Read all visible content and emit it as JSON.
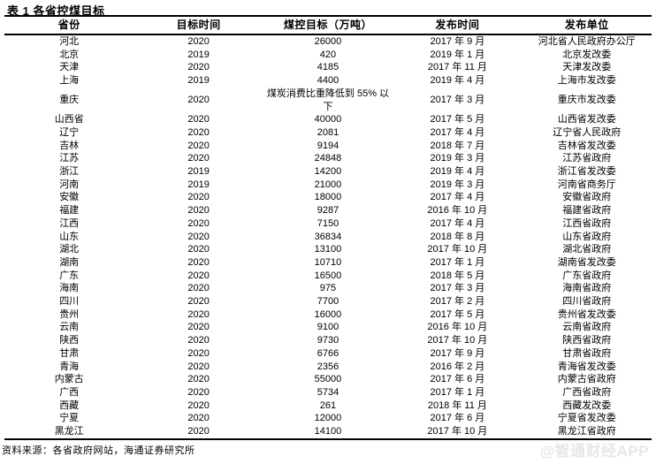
{
  "title": "表 1 各省控煤目标",
  "table": {
    "headers": [
      "省份",
      "目标时间",
      "煤控目标（万吨）",
      "发布时间",
      "发布单位"
    ],
    "rows": [
      [
        "河北",
        "2020",
        "26000",
        "2017 年 9 月",
        "河北省人民政府办公厅"
      ],
      [
        "北京",
        "2019",
        "420",
        "2019 年 1 月",
        "北京发改委"
      ],
      [
        "天津",
        "2020",
        "4185",
        "2017 年 11 月",
        "天津发改委"
      ],
      [
        "上海",
        "2019",
        "4400",
        "2019 年 4 月",
        "上海市发改委"
      ],
      [
        "重庆",
        "2020",
        "煤炭消费比重降低到 55% 以下",
        "2017 年 3 月",
        "重庆市发改委"
      ],
      [
        "山西省",
        "2020",
        "40000",
        "2017 年 5 月",
        "山西省发改委"
      ],
      [
        "辽宁",
        "2020",
        "2081",
        "2017 年 4 月",
        "辽宁省人民政府"
      ],
      [
        "吉林",
        "2020",
        "9194",
        "2018 年 7 月",
        "吉林省发改委"
      ],
      [
        "江苏",
        "2020",
        "24848",
        "2019 年 3 月",
        "江苏省政府"
      ],
      [
        "浙江",
        "2019",
        "14200",
        "2019 年 4 月",
        "浙江省发改委"
      ],
      [
        "河南",
        "2019",
        "21000",
        "2019 年 3 月",
        "河南省商务厅"
      ],
      [
        "安徽",
        "2020",
        "18000",
        "2017 年 4 月",
        "安徽省政府"
      ],
      [
        "福建",
        "2020",
        "9287",
        "2016 年 10 月",
        "福建省政府"
      ],
      [
        "江西",
        "2020",
        "7150",
        "2017 年 4 月",
        "江西省政府"
      ],
      [
        "山东",
        "2020",
        "36834",
        "2018 年 8 月",
        "山东省政府"
      ],
      [
        "湖北",
        "2020",
        "13100",
        "2017 年 10 月",
        "湖北省政府"
      ],
      [
        "湖南",
        "2020",
        "10710",
        "2017 年 1 月",
        "湖南省发改委"
      ],
      [
        "广东",
        "2020",
        "16500",
        "2018 年 5 月",
        "广东省政府"
      ],
      [
        "海南",
        "2020",
        "975",
        "2017 年 3 月",
        "海南省政府"
      ],
      [
        "四川",
        "2020",
        "7700",
        "2017 年 2 月",
        "四川省政府"
      ],
      [
        "贵州",
        "2020",
        "16000",
        "2017 年 5 月",
        "贵州省发改委"
      ],
      [
        "云南",
        "2020",
        "9100",
        "2016 年 10 月",
        "云南省政府"
      ],
      [
        "陕西",
        "2020",
        "9730",
        "2017 年 10 月",
        "陕西省政府"
      ],
      [
        "甘肃",
        "2020",
        "6766",
        "2017 年 9 月",
        "甘肃省政府"
      ],
      [
        "青海",
        "2020",
        "2356",
        "2016 年 2 月",
        "青海省发改委"
      ],
      [
        "内蒙古",
        "2020",
        "55000",
        "2017 年 6 月",
        "内蒙古省政府"
      ],
      [
        "广西",
        "2020",
        "5734",
        "2017 年 1 月",
        "广西省政府"
      ],
      [
        "西藏",
        "2020",
        "261",
        "2018 年 11 月",
        "西藏发改委"
      ],
      [
        "宁夏",
        "2020",
        "12000",
        "2017 年 6 月",
        "宁夏省发改委"
      ],
      [
        "黑龙江",
        "2020",
        "14100",
        "2017 年 10 月",
        "黑龙江省政府"
      ]
    ]
  },
  "footer": {
    "source": "资料来源：各省政府网站，海通证券研究所"
  },
  "watermark": "@智通财经APP",
  "colors": {
    "text": "#000000",
    "background": "#ffffff",
    "border": "#000000",
    "watermark": "#e7e7e7"
  }
}
